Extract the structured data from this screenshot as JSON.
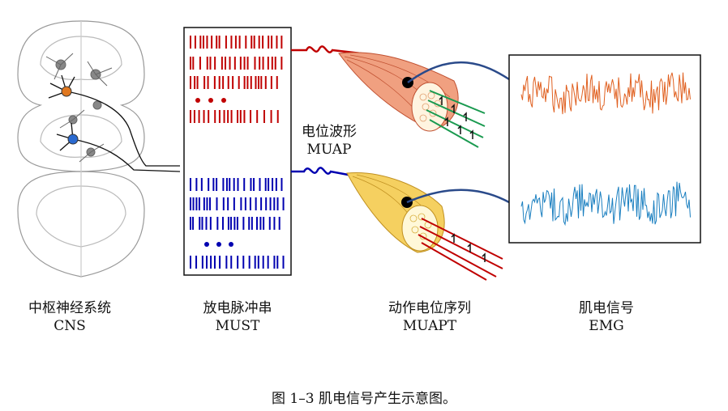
{
  "labels": {
    "cns": {
      "zh": "中枢神经系统",
      "en": "CNS"
    },
    "must": {
      "zh": "放电脉冲串",
      "en": "MUST"
    },
    "muapt": {
      "zh": "动作电位序列",
      "en": "MUAPT"
    },
    "emg": {
      "zh": "肌电信号",
      "en": "EMG"
    },
    "muap": {
      "zh": "电位波形",
      "en": "MUAP"
    }
  },
  "caption": "图 1–3 肌电信号产生示意图。",
  "colors": {
    "red_train": "#c00000",
    "blue_train": "#0000b0",
    "emg_orange": "#e06020",
    "emg_blue": "#1a7fc0",
    "muscle_red": "#f0a080",
    "muscle_yellow": "#f5d060",
    "fiber_green": "#1a9a50",
    "cable": "#2a4a8a"
  }
}
